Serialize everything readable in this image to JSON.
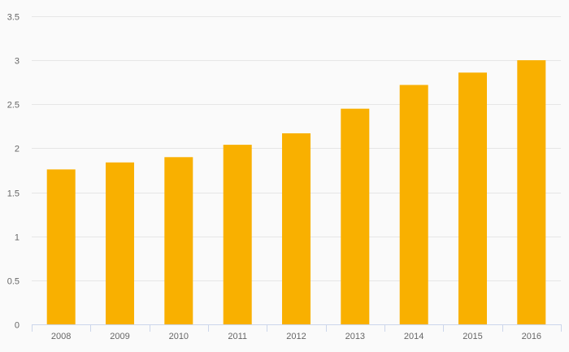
{
  "chart_data": {
    "type": "bar",
    "title": "",
    "xlabel": "",
    "ylabel": "",
    "categories": [
      "2008",
      "2009",
      "2010",
      "2011",
      "2012",
      "2013",
      "2014",
      "2015",
      "2016"
    ],
    "values": [
      1.76,
      1.84,
      1.9,
      2.04,
      2.17,
      2.45,
      2.72,
      2.86,
      3.0
    ],
    "ylim": [
      0,
      3.5
    ],
    "yticks": [
      "0",
      "0.5",
      "1",
      "1.5",
      "2",
      "2.5",
      "3",
      "3.5"
    ],
    "grid": true,
    "legend": "none",
    "colors": {
      "bar": "#f9b000",
      "grid": "#e6e6e6",
      "axis": "#ccd6eb",
      "tick_text": "#666666",
      "background": "#fafafa"
    }
  }
}
